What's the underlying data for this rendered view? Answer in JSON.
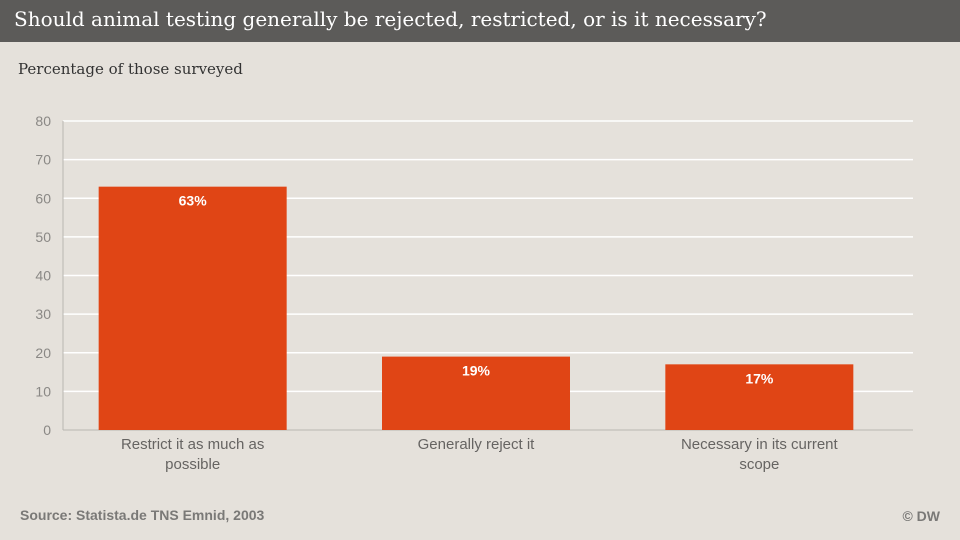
{
  "header": {
    "title": "Should animal testing generally be rejected, restricted, or is it necessary?"
  },
  "subtitle": "Percentage of those surveyed",
  "footer": {
    "source": "Source: Statista.de  TNS Emnid, 2003",
    "brand": "© DW"
  },
  "colors": {
    "bar": "#e04515",
    "header_bg": "#5c5b59",
    "background": "#e5e1db",
    "grid": "#ffffff",
    "axis_text": "#8a8885"
  },
  "chart_data": {
    "type": "bar",
    "title": "Should animal testing generally be rejected, restricted, or is it necessary?",
    "ylabel": "Percentage of those surveyed",
    "xlabel": "",
    "categories": [
      [
        "Restrict it as much as",
        "possible"
      ],
      [
        "Generally reject it"
      ],
      [
        "Necessary in its current",
        "scope"
      ]
    ],
    "values": [
      63,
      19,
      17
    ],
    "data_labels": [
      "63%",
      "19%",
      "17%"
    ],
    "ylim": [
      0,
      80
    ],
    "yticks": [
      0,
      10,
      20,
      30,
      40,
      50,
      60,
      70,
      80
    ],
    "grid": true
  }
}
